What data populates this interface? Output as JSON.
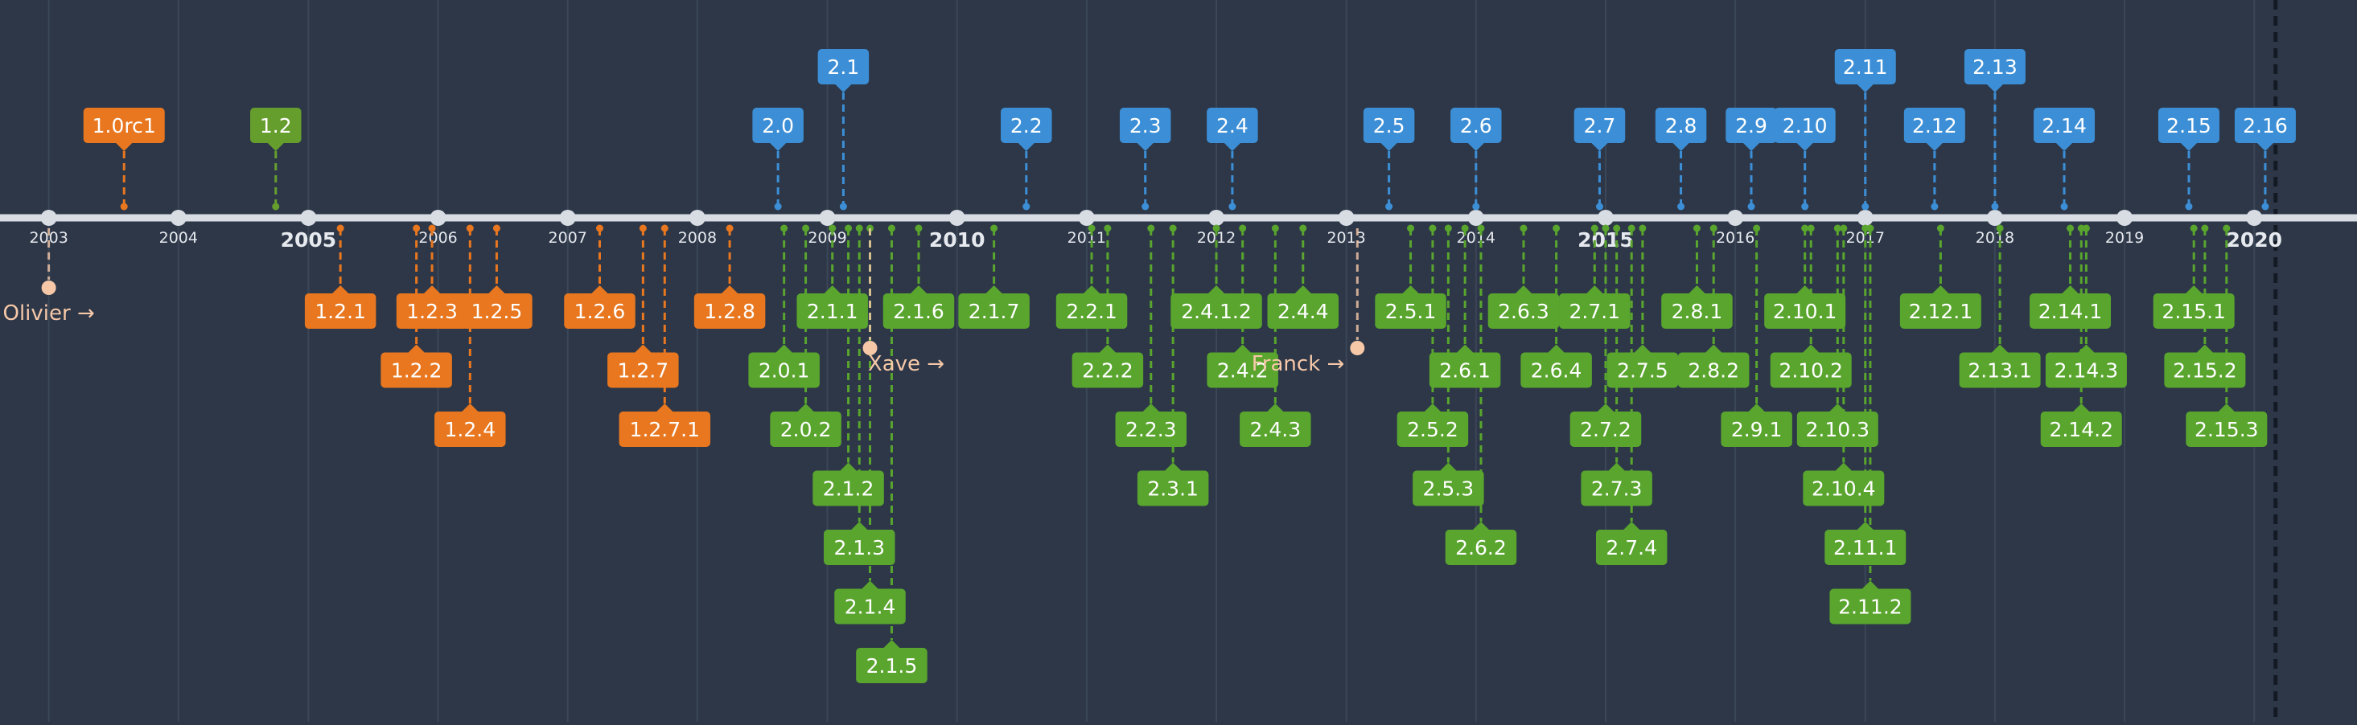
{
  "chart_data": {
    "type": "timeline",
    "title": "",
    "xlim": [
      "2002-10-01",
      "2020-09-01"
    ],
    "colors": {
      "background": "#2d3748",
      "axis": "#d8dde4",
      "grid": "#3b4657",
      "major": "#e8771f",
      "minor": "#669e2e",
      "point": "#3c8fd6",
      "patch": "#59a52e",
      "person": "#f6c8a8",
      "year_text": "#e6e9ee"
    },
    "years": [
      {
        "label": "2003",
        "bold": false
      },
      {
        "label": "2004",
        "bold": false
      },
      {
        "label": "2005",
        "bold": true
      },
      {
        "label": "2006",
        "bold": false
      },
      {
        "label": "2007",
        "bold": false
      },
      {
        "label": "2008",
        "bold": false
      },
      {
        "label": "2009",
        "bold": false
      },
      {
        "label": "2010",
        "bold": true
      },
      {
        "label": "2011",
        "bold": false
      },
      {
        "label": "2012",
        "bold": false
      },
      {
        "label": "2013",
        "bold": false
      },
      {
        "label": "2014",
        "bold": false
      },
      {
        "label": "2015",
        "bold": true
      },
      {
        "label": "2016",
        "bold": false
      },
      {
        "label": "2017",
        "bold": false
      },
      {
        "label": "2018",
        "bold": false
      },
      {
        "label": "2019",
        "bold": false
      },
      {
        "label": "2020",
        "bold": true
      }
    ],
    "people": [
      {
        "label": "Olivier →",
        "date": "2003-01-01"
      },
      {
        "label": "Xave →",
        "date": "2009-05-01"
      },
      {
        "label": "Franck →",
        "date": "2013-02-01"
      }
    ],
    "releases_above": [
      {
        "label": "1.0rc1",
        "date": "2003-08-01",
        "level": 1,
        "kind": "major"
      },
      {
        "label": "1.2",
        "date": "2004-10-01",
        "level": 1,
        "kind": "minor"
      },
      {
        "label": "2.0",
        "date": "2008-08-15",
        "level": 1,
        "kind": "point"
      },
      {
        "label": "2.1",
        "date": "2009-02-15",
        "level": 2,
        "kind": "point"
      },
      {
        "label": "2.2",
        "date": "2010-07-15",
        "level": 1,
        "kind": "point"
      },
      {
        "label": "2.3",
        "date": "2011-06-15",
        "level": 1,
        "kind": "point"
      },
      {
        "label": "2.4",
        "date": "2012-02-15",
        "level": 1,
        "kind": "point"
      },
      {
        "label": "2.5",
        "date": "2013-05-01",
        "level": 1,
        "kind": "point"
      },
      {
        "label": "2.6",
        "date": "2014-01-01",
        "level": 1,
        "kind": "point"
      },
      {
        "label": "2.7",
        "date": "2014-12-15",
        "level": 1,
        "kind": "point"
      },
      {
        "label": "2.8",
        "date": "2015-08-01",
        "level": 1,
        "kind": "point"
      },
      {
        "label": "2.9",
        "date": "2016-02-15",
        "level": 1,
        "kind": "point"
      },
      {
        "label": "2.10",
        "date": "2016-07-15",
        "level": 1,
        "kind": "point"
      },
      {
        "label": "2.11",
        "date": "2017-01-01",
        "level": 2,
        "kind": "point"
      },
      {
        "label": "2.12",
        "date": "2017-07-15",
        "level": 1,
        "kind": "point"
      },
      {
        "label": "2.13",
        "date": "2018-01-01",
        "level": 2,
        "kind": "point"
      },
      {
        "label": "2.14",
        "date": "2018-07-15",
        "level": 1,
        "kind": "point"
      },
      {
        "label": "2.15",
        "date": "2019-07-01",
        "level": 1,
        "kind": "point"
      },
      {
        "label": "2.16",
        "date": "2020-02-01",
        "level": 1,
        "kind": "point"
      }
    ],
    "releases_below": [
      {
        "label": "1.2.1",
        "date": "2005-04-01",
        "level": 1,
        "kind": "major"
      },
      {
        "label": "1.2.2",
        "date": "2005-11-01",
        "level": 2,
        "kind": "major"
      },
      {
        "label": "1.2.3",
        "date": "2005-12-15",
        "level": 1,
        "kind": "major"
      },
      {
        "label": "1.2.4",
        "date": "2006-04-01",
        "level": 3,
        "kind": "major"
      },
      {
        "label": "1.2.5",
        "date": "2006-06-15",
        "level": 1,
        "kind": "major"
      },
      {
        "label": "1.2.6",
        "date": "2007-04-01",
        "level": 1,
        "kind": "major"
      },
      {
        "label": "1.2.7",
        "date": "2007-08-01",
        "level": 2,
        "kind": "major"
      },
      {
        "label": "1.2.7.1",
        "date": "2007-10-01",
        "level": 3,
        "kind": "major"
      },
      {
        "label": "1.2.8",
        "date": "2008-04-01",
        "level": 1,
        "kind": "major"
      },
      {
        "label": "2.0.1",
        "date": "2008-09-01",
        "level": 2,
        "kind": "patch"
      },
      {
        "label": "2.0.2",
        "date": "2008-11-01",
        "level": 3,
        "kind": "patch"
      },
      {
        "label": "2.1.1",
        "date": "2009-01-15",
        "level": 1,
        "kind": "patch"
      },
      {
        "label": "2.1.2",
        "date": "2009-03-01",
        "level": 4,
        "kind": "patch"
      },
      {
        "label": "2.1.3",
        "date": "2009-04-01",
        "level": 5,
        "kind": "patch"
      },
      {
        "label": "2.1.4",
        "date": "2009-05-01",
        "level": 6,
        "kind": "patch"
      },
      {
        "label": "2.1.5",
        "date": "2009-07-01",
        "level": 7,
        "kind": "patch"
      },
      {
        "label": "2.1.6",
        "date": "2009-09-15",
        "level": 1,
        "kind": "patch"
      },
      {
        "label": "2.1.7",
        "date": "2010-04-15",
        "level": 1,
        "kind": "patch"
      },
      {
        "label": "2.2.1",
        "date": "2011-01-15",
        "level": 1,
        "kind": "patch"
      },
      {
        "label": "2.2.2",
        "date": "2011-03-01",
        "level": 2,
        "kind": "patch"
      },
      {
        "label": "2.2.3",
        "date": "2011-07-01",
        "level": 3,
        "kind": "patch"
      },
      {
        "label": "2.3.1",
        "date": "2011-09-01",
        "level": 4,
        "kind": "patch"
      },
      {
        "label": "2.4.1.2",
        "date": "2012-01-01",
        "level": 1,
        "kind": "patch"
      },
      {
        "label": "2.4.2",
        "date": "2012-03-15",
        "level": 2,
        "kind": "patch"
      },
      {
        "label": "2.4.3",
        "date": "2012-06-15",
        "level": 3,
        "kind": "patch"
      },
      {
        "label": "2.4.4",
        "date": "2012-09-01",
        "level": 1,
        "kind": "patch"
      },
      {
        "label": "2.5.1",
        "date": "2013-07-01",
        "level": 1,
        "kind": "patch"
      },
      {
        "label": "2.5.2",
        "date": "2013-09-01",
        "level": 3,
        "kind": "patch"
      },
      {
        "label": "2.5.3",
        "date": "2013-10-15",
        "level": 4,
        "kind": "patch"
      },
      {
        "label": "2.6.1",
        "date": "2013-12-01",
        "level": 2,
        "kind": "patch"
      },
      {
        "label": "2.6.2",
        "date": "2014-01-15",
        "level": 5,
        "kind": "patch"
      },
      {
        "label": "2.6.3",
        "date": "2014-05-15",
        "level": 1,
        "kind": "patch"
      },
      {
        "label": "2.6.4",
        "date": "2014-08-15",
        "level": 2,
        "kind": "patch"
      },
      {
        "label": "2.7.1",
        "date": "2014-12-01",
        "level": 1,
        "kind": "patch"
      },
      {
        "label": "2.7.2",
        "date": "2015-01-01",
        "level": 3,
        "kind": "patch"
      },
      {
        "label": "2.7.3",
        "date": "2015-02-01",
        "level": 4,
        "kind": "patch"
      },
      {
        "label": "2.7.4",
        "date": "2015-03-15",
        "level": 5,
        "kind": "patch"
      },
      {
        "label": "2.7.5",
        "date": "2015-04-15",
        "level": 2,
        "kind": "patch"
      },
      {
        "label": "2.8.1",
        "date": "2015-09-15",
        "level": 1,
        "kind": "patch"
      },
      {
        "label": "2.8.2",
        "date": "2015-11-01",
        "level": 2,
        "kind": "patch"
      },
      {
        "label": "2.9.1",
        "date": "2016-03-01",
        "level": 3,
        "kind": "patch"
      },
      {
        "label": "2.10.1",
        "date": "2016-07-15",
        "level": 1,
        "kind": "patch"
      },
      {
        "label": "2.10.2",
        "date": "2016-08-01",
        "level": 2,
        "kind": "patch"
      },
      {
        "label": "2.10.3",
        "date": "2016-10-15",
        "level": 3,
        "kind": "patch"
      },
      {
        "label": "2.10.4",
        "date": "2016-11-01",
        "level": 4,
        "kind": "patch"
      },
      {
        "label": "2.11.1",
        "date": "2017-01-01",
        "level": 5,
        "kind": "patch"
      },
      {
        "label": "2.11.2",
        "date": "2017-01-15",
        "level": 6,
        "kind": "patch"
      },
      {
        "label": "2.12.1",
        "date": "2017-08-01",
        "level": 1,
        "kind": "patch"
      },
      {
        "label": "2.13.1",
        "date": "2018-01-15",
        "level": 2,
        "kind": "patch"
      },
      {
        "label": "2.14.1",
        "date": "2018-08-01",
        "level": 1,
        "kind": "patch"
      },
      {
        "label": "2.14.2",
        "date": "2018-09-01",
        "level": 3,
        "kind": "patch"
      },
      {
        "label": "2.14.3",
        "date": "2018-09-15",
        "level": 2,
        "kind": "patch"
      },
      {
        "label": "2.15.1",
        "date": "2019-07-15",
        "level": 1,
        "kind": "patch"
      },
      {
        "label": "2.15.2",
        "date": "2019-08-15",
        "level": 2,
        "kind": "patch"
      },
      {
        "label": "2.15.3",
        "date": "2019-10-15",
        "level": 3,
        "kind": "patch"
      }
    ]
  }
}
